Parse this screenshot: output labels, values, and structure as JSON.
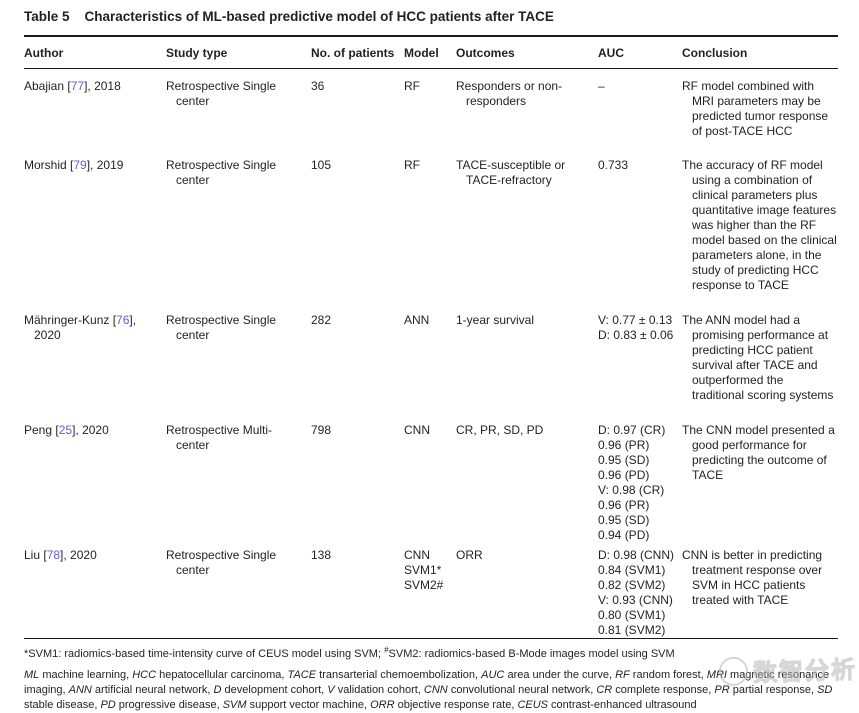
{
  "colors": {
    "link": "#6060cc",
    "text": "#231f20",
    "rule": "#1a1a1a"
  },
  "title": {
    "label": "Table 5",
    "text": "Characteristics of ML-based predictive model of HCC patients after TACE"
  },
  "columns": {
    "author": "Author",
    "study_type": "Study type",
    "patients": "No. of patients",
    "model": "Model",
    "outcomes": "Outcomes",
    "auc": "AUC",
    "conclusion": "Conclusion"
  },
  "rows": [
    {
      "author_pre": "Abajian [",
      "author_ref": "77",
      "author_post": "], 2018",
      "study_type": "Retrospective Single center",
      "patients": "36",
      "model": "RF",
      "outcomes": "Responders or non-responders",
      "auc": "–",
      "conclusion": "RF model combined with MRI parameters may be predicted tumor response of post-TACE HCC"
    },
    {
      "author_pre": "Morshid [",
      "author_ref": "79",
      "author_post": "], 2019",
      "study_type": "Retrospective Single center",
      "patients": "105",
      "model": "RF",
      "outcomes": "TACE-susceptible or TACE-refractory",
      "auc": "0.733",
      "conclusion": "The accuracy of RF model using a combination of clinical parameters plus quantitative image features was higher than the RF model based on the clinical parameters alone, in the study of predicting HCC response to TACE"
    },
    {
      "author_pre": "Mähringer-Kunz [",
      "author_ref": "76",
      "author_post": "], 2020",
      "study_type": "Retrospective Single center",
      "patients": "282",
      "model": "ANN",
      "outcomes": "1-year survival",
      "auc": "V: 0.77 ± 0.13\nD: 0.83 ± 0.06",
      "conclusion": "The ANN model had a promising performance at predicting HCC patient survival after TACE and outperformed the traditional scoring systems"
    },
    {
      "author_pre": "Peng [",
      "author_ref": "25",
      "author_post": "], 2020",
      "study_type": "Retrospective Multi-center",
      "patients": "798",
      "model": "CNN",
      "outcomes": "CR, PR, SD, PD",
      "auc": "D: 0.97 (CR)\n0.96 (PR)\n0.95 (SD)\n0.96 (PD)\nV: 0.98 (CR)\n0.96 (PR)\n0.95 (SD)\n0.94 (PD)",
      "conclusion": "The CNN model presented a good performance for predicting the outcome of TACE"
    },
    {
      "author_pre": "Liu [",
      "author_ref": "78",
      "author_post": "], 2020",
      "study_type": "Retrospective Single center",
      "patients": "138",
      "model": "CNN\nSVM1*\nSVM2#",
      "outcomes": "ORR",
      "auc": "D: 0.98 (CNN)\n0.84 (SVM1)\n0.82 (SVM2)\nV: 0.93 (CNN)\n0.80 (SVM1)\n0.81 (SVM2)",
      "conclusion": "CNN is better in predicting treatment response over SVM in HCC patients treated with TACE"
    }
  ],
  "footnotes": {
    "fn1_segments": [
      {
        "t": "*SVM1: radiomics-based time-intensity curve of CEUS model using SVM; "
      },
      {
        "t": "#",
        "sup": true
      },
      {
        "t": "SVM2: radiomics-based B-Mode images model using SVM"
      }
    ],
    "abbrev_segments": [
      {
        "t": "ML",
        "i": true
      },
      {
        "t": " machine learning, "
      },
      {
        "t": "HCC",
        "i": true
      },
      {
        "t": " hepatocellular carcinoma, "
      },
      {
        "t": "TACE",
        "i": true
      },
      {
        "t": " transarterial chemoembolization, "
      },
      {
        "t": "AUC",
        "i": true
      },
      {
        "t": " area under the curve, "
      },
      {
        "t": "RF",
        "i": true
      },
      {
        "t": " random forest, "
      },
      {
        "t": "MRI",
        "i": true
      },
      {
        "t": " magnetic resonance imaging, "
      },
      {
        "t": "ANN",
        "i": true
      },
      {
        "t": " artificial neural network, "
      },
      {
        "t": "D",
        "i": true
      },
      {
        "t": " development cohort, "
      },
      {
        "t": "V",
        "i": true
      },
      {
        "t": " validation cohort, "
      },
      {
        "t": "CNN",
        "i": true
      },
      {
        "t": " convolutional neural network, "
      },
      {
        "t": "CR",
        "i": true
      },
      {
        "t": " complete response, "
      },
      {
        "t": "PR",
        "i": true
      },
      {
        "t": " partial response, "
      },
      {
        "t": "SD",
        "i": true
      },
      {
        "t": " stable disease, "
      },
      {
        "t": "PD",
        "i": true
      },
      {
        "t": " progressive disease, "
      },
      {
        "t": "SVM",
        "i": true
      },
      {
        "t": " support vector machine, "
      },
      {
        "t": "ORR",
        "i": true
      },
      {
        "t": " objective response rate, "
      },
      {
        "t": "CEUS",
        "i": true
      },
      {
        "t": " contrast-enhanced ultrasound"
      }
    ]
  },
  "watermark": {
    "text": "数智分析"
  }
}
